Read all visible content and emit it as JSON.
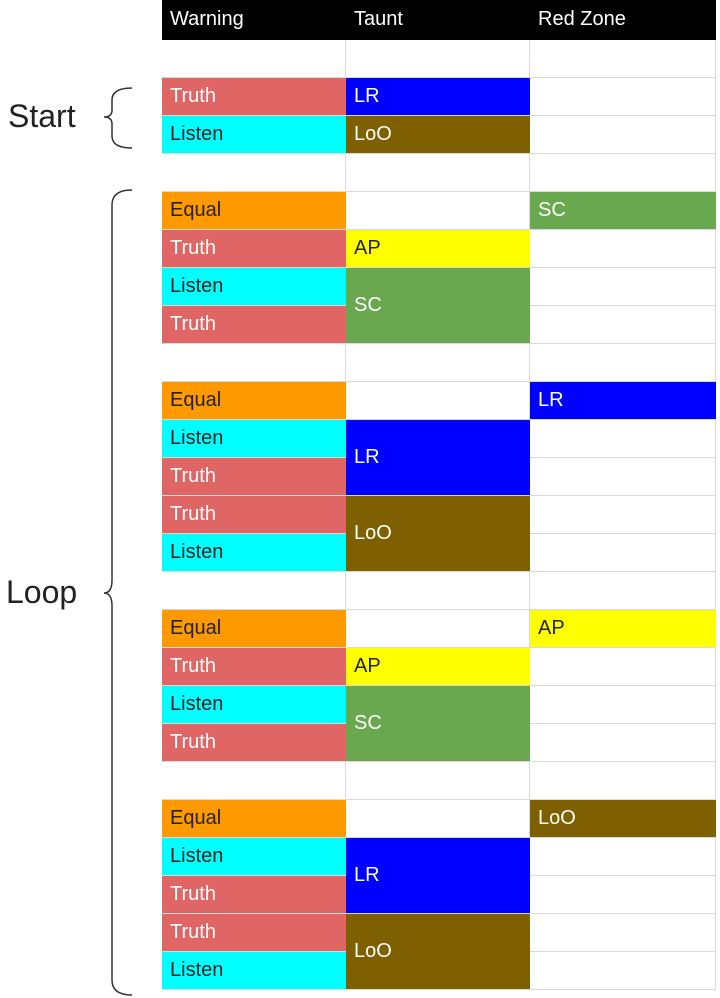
{
  "labels": {
    "start": "Start",
    "loop": "Loop"
  },
  "table": {
    "header": [
      "Warning",
      "Taunt",
      "Red Zone"
    ],
    "cells": [
      "Truth",
      "LR",
      "Listen",
      "LoO",
      "Equal",
      "SC",
      "Truth",
      "AP",
      "Listen",
      "SC",
      "Truth",
      "Equal",
      "LR",
      "Listen",
      "LR",
      "Truth",
      "Truth",
      "LoO",
      "Listen",
      "Equal",
      "AP",
      "Truth",
      "AP",
      "Listen",
      "SC",
      "Truth",
      "Equal",
      "LoO",
      "Listen",
      "LR",
      "Truth",
      "Truth",
      "LoO",
      "Listen"
    ]
  }
}
